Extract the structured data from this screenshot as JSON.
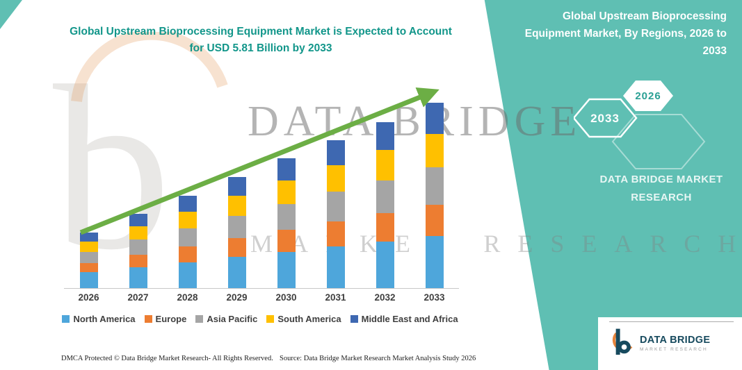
{
  "header": {
    "title": "Global Upstream Bioprocessing Equipment Market is Expected to Account for USD 5.81 Billion by 2033"
  },
  "right_panel": {
    "heading": "Global Upstream Bioprocessing Equipment Market, By Regions, 2026 to 2033",
    "hexagon_back": "2033",
    "hexagon_front": "2026",
    "brand_text": "DATA BRIDGE MARKET RESEARCH"
  },
  "watermark": {
    "letter": "b",
    "line1": "DATA BRIDGE",
    "line2": "MARKET RESEARCH"
  },
  "logo": {
    "name": "DATA BRIDGE",
    "tagline": "MARKET RESEARCH"
  },
  "footer": {
    "dmca": "DMCA Protected © Data Bridge Market Research-  All Rights Reserved.",
    "source": "Source: Data Bridge Market Research  Market Analysis Study 2026"
  },
  "colors": {
    "teal": "#5FBFB3",
    "teal_dark": "#2AA094",
    "title": "#12968A",
    "arrow": "#6CAE45",
    "logo_navy": "#174A5E",
    "logo_orange": "#E8833A"
  },
  "chart_data": {
    "type": "bar",
    "subtype": "stacked-vertical",
    "unit": "USD Billion",
    "categories": [
      "2026",
      "2027",
      "2028",
      "2029",
      "2030",
      "2031",
      "2032",
      "2033"
    ],
    "series": [
      {
        "name": "North America",
        "color": "#4EA6DB",
        "values": [
          0.49,
          0.65,
          0.81,
          0.97,
          1.14,
          1.3,
          1.46,
          1.63
        ]
      },
      {
        "name": "Europe",
        "color": "#ED7D31",
        "values": [
          0.3,
          0.4,
          0.49,
          0.59,
          0.69,
          0.79,
          0.88,
          0.99
        ]
      },
      {
        "name": "Asia Pacific",
        "color": "#A5A5A5",
        "values": [
          0.35,
          0.47,
          0.58,
          0.7,
          0.81,
          0.93,
          1.04,
          1.16
        ]
      },
      {
        "name": "South America",
        "color": "#FFC000",
        "values": [
          0.31,
          0.42,
          0.52,
          0.63,
          0.73,
          0.83,
          0.94,
          1.05
        ]
      },
      {
        "name": "Middle East and Africa",
        "color": "#3E68B1",
        "values": [
          0.29,
          0.39,
          0.49,
          0.59,
          0.7,
          0.78,
          0.88,
          0.98
        ]
      }
    ],
    "totals": [
      1.74,
      2.33,
      2.89,
      3.48,
      4.07,
      4.63,
      5.2,
      5.81
    ],
    "ylim": [
      0,
      6
    ],
    "grid": false,
    "legend_position": "bottom",
    "annotations": [
      "upward trend arrow across bars"
    ]
  }
}
